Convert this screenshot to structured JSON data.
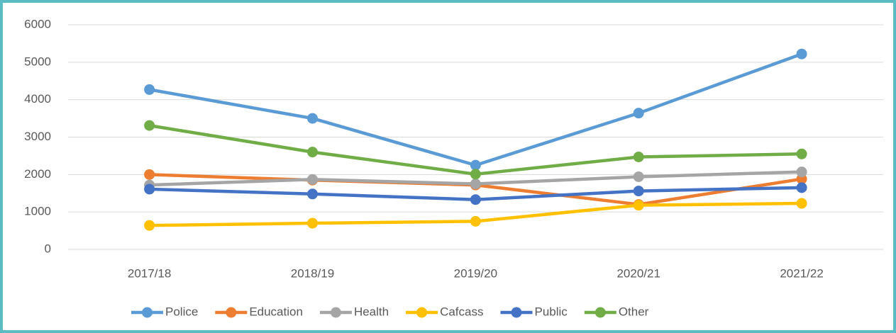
{
  "chart_data": {
    "type": "line",
    "categories": [
      "2017/18",
      "2018/19",
      "2019/20",
      "2020/21",
      "2021/22"
    ],
    "series": [
      {
        "name": "Police",
        "color": "#5b9bd5",
        "values": [
          4270,
          3500,
          2250,
          3640,
          5220
        ]
      },
      {
        "name": "Education",
        "color": "#ed7d31",
        "values": [
          2000,
          1850,
          1720,
          1200,
          1880
        ]
      },
      {
        "name": "Health",
        "color": "#a5a5a5",
        "values": [
          1720,
          1870,
          1750,
          1940,
          2070
        ]
      },
      {
        "name": "Cafcass",
        "color": "#ffc000",
        "values": [
          640,
          700,
          750,
          1180,
          1230
        ]
      },
      {
        "name": "Public",
        "color": "#4472c4",
        "values": [
          1610,
          1480,
          1330,
          1560,
          1650
        ]
      },
      {
        "name": "Other",
        "color": "#70ad47",
        "values": [
          3310,
          2600,
          2010,
          2470,
          2550
        ]
      }
    ],
    "ylim": [
      0,
      6000
    ],
    "yticks": [
      0,
      1000,
      2000,
      3000,
      4000,
      5000,
      6000
    ],
    "grid": true,
    "legend": "bottom"
  }
}
